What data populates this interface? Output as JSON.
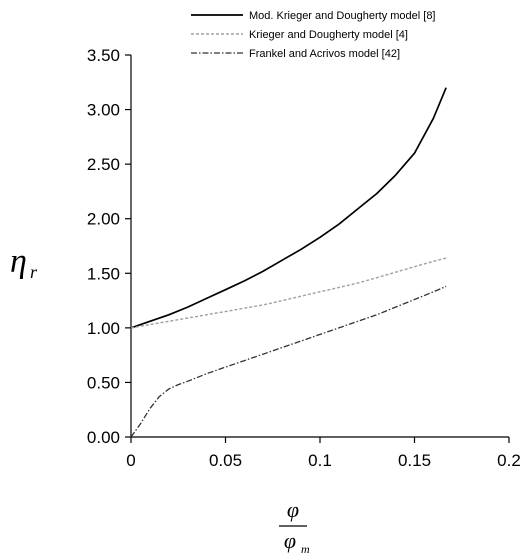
{
  "chart_data": {
    "type": "line",
    "title": "",
    "ylabel_main": "η",
    "ylabel_sub": "r",
    "xlabel_num": "φ",
    "xlabel_den": "φ",
    "xlabel_den_sub": "m",
    "xlim": [
      0,
      0.2
    ],
    "ylim": [
      0,
      3.5
    ],
    "xticks": [
      "0",
      "0.05",
      "0.1",
      "0.15",
      "0.2"
    ],
    "yticks": [
      "0.00",
      "0.50",
      "1.00",
      "1.50",
      "2.00",
      "2.50",
      "3.00",
      "3.50"
    ],
    "grid": false,
    "legend_position": "top-right",
    "series": [
      {
        "name": "Mod. Krieger and Dougherty model [8]",
        "color": "#000000",
        "dash": "solid",
        "x": [
          0,
          0.01,
          0.02,
          0.03,
          0.04,
          0.05,
          0.06,
          0.07,
          0.08,
          0.09,
          0.1,
          0.11,
          0.12,
          0.13,
          0.14,
          0.15,
          0.16,
          0.1667
        ],
        "y": [
          1.0,
          1.06,
          1.12,
          1.19,
          1.27,
          1.35,
          1.43,
          1.52,
          1.62,
          1.72,
          1.83,
          1.95,
          2.09,
          2.23,
          2.4,
          2.6,
          2.92,
          3.2
        ]
      },
      {
        "name": "Krieger and Dougherty model [4]",
        "color": "#a0a0a0",
        "dash": "short-dash",
        "x": [
          0,
          0.01,
          0.02,
          0.03,
          0.04,
          0.05,
          0.06,
          0.07,
          0.08,
          0.09,
          0.1,
          0.11,
          0.12,
          0.13,
          0.14,
          0.15,
          0.16,
          0.1667
        ],
        "y": [
          1.0,
          1.03,
          1.06,
          1.09,
          1.12,
          1.15,
          1.18,
          1.21,
          1.25,
          1.29,
          1.33,
          1.37,
          1.41,
          1.46,
          1.51,
          1.56,
          1.61,
          1.64
        ]
      },
      {
        "name": "Frankel and Acrivos model [42]",
        "color": "#333333",
        "dash": "dash-dot",
        "x": [
          0,
          0.005,
          0.01,
          0.015,
          0.02,
          0.025,
          0.03,
          0.04,
          0.05,
          0.06,
          0.07,
          0.08,
          0.09,
          0.1,
          0.11,
          0.12,
          0.13,
          0.14,
          0.15,
          0.16,
          0.1667
        ],
        "y": [
          0.0,
          0.12,
          0.26,
          0.37,
          0.44,
          0.48,
          0.51,
          0.58,
          0.64,
          0.7,
          0.76,
          0.82,
          0.88,
          0.94,
          1.0,
          1.06,
          1.12,
          1.19,
          1.26,
          1.33,
          1.38
        ]
      }
    ]
  }
}
